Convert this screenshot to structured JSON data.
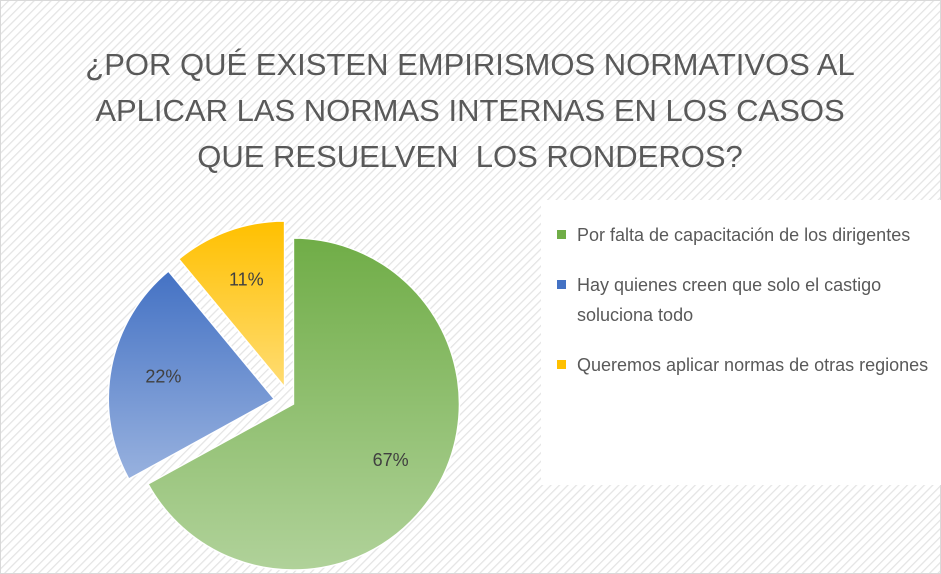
{
  "chart_data": {
    "type": "pie",
    "title": "¿POR QUÉ EXISTEN EMPIRISMOS NORMATIVOS AL APLICAR LAS NORMAS INTERNAS EN LOS CASOS QUE RESUELVEN  LOS RONDEROS?",
    "categories": [
      "Por falta de capacitación de los dirigentes",
      "Hay quienes creen que solo el castigo soluciona todo",
      "Queremos aplicar normas de otras regiones"
    ],
    "values": [
      67,
      22,
      11
    ],
    "value_labels": [
      "67%",
      "22%",
      "11%"
    ],
    "colors": [
      "#70ad47",
      "#4472c4",
      "#ffc000"
    ]
  }
}
